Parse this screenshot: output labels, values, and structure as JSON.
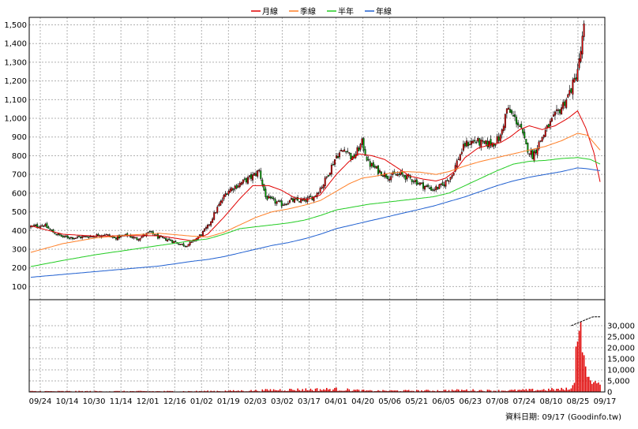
{
  "chart_data": {
    "type": "candlestick",
    "legend": [
      {
        "name": "月線",
        "color": "#e00000"
      },
      {
        "name": "季線",
        "color": "#ff7f27"
      },
      {
        "name": "半年",
        "color": "#22cc22"
      },
      {
        "name": "年線",
        "color": "#1f5fd0"
      }
    ],
    "legend_placement": "top-center",
    "grid": true,
    "price_axis": {
      "ticks": [
        100,
        200,
        300,
        400,
        500,
        600,
        700,
        800,
        900,
        1000,
        1100,
        1200,
        1300,
        1400,
        1500
      ],
      "tick_labels": [
        "100",
        "200",
        "300",
        "400",
        "500",
        "600",
        "700",
        "800",
        "900",
        "1,000",
        "1,100",
        "1,200",
        "1,300",
        "1,400",
        "1,500"
      ],
      "ylim": [
        30,
        1540
      ]
    },
    "volume_axis": {
      "ticks": [
        0,
        5000,
        10000,
        15000,
        20000,
        25000,
        30000
      ],
      "tick_labels": [
        "0",
        "5,000",
        "10,000",
        "15,000",
        "20,000",
        "25,000",
        "30,000"
      ],
      "ylim": [
        0,
        37500
      ]
    },
    "x_tick_labels": [
      "09/24",
      "10/14",
      "10/30",
      "11/14",
      "12/01",
      "12/16",
      "01/02",
      "01/19",
      "02/03",
      "03/02",
      "03/17",
      "04/01",
      "04/20",
      "05/06",
      "05/21",
      "06/05",
      "06/23",
      "07/08",
      "07/24",
      "08/10",
      "08/25",
      "09/17"
    ],
    "price_anchors": [
      [
        0,
        420
      ],
      [
        8,
        430
      ],
      [
        14,
        390
      ],
      [
        20,
        365
      ],
      [
        28,
        362
      ],
      [
        38,
        370
      ],
      [
        46,
        380
      ],
      [
        52,
        360
      ],
      [
        60,
        375
      ],
      [
        66,
        355
      ],
      [
        74,
        390
      ],
      [
        80,
        360
      ],
      [
        86,
        350
      ],
      [
        92,
        330
      ],
      [
        96,
        320
      ],
      [
        100,
        335
      ],
      [
        106,
        380
      ],
      [
        110,
        420
      ],
      [
        116,
        520
      ],
      [
        122,
        610
      ],
      [
        130,
        650
      ],
      [
        138,
        690
      ],
      [
        142,
        720
      ],
      [
        146,
        580
      ],
      [
        150,
        560
      ],
      [
        156,
        540
      ],
      [
        162,
        560
      ],
      [
        170,
        560
      ],
      [
        176,
        580
      ],
      [
        182,
        650
      ],
      [
        190,
        800
      ],
      [
        196,
        840
      ],
      [
        200,
        780
      ],
      [
        206,
        870
      ],
      [
        210,
        760
      ],
      [
        216,
        720
      ],
      [
        222,
        690
      ],
      [
        230,
        700
      ],
      [
        238,
        670
      ],
      [
        244,
        640
      ],
      [
        250,
        620
      ],
      [
        256,
        640
      ],
      [
        262,
        700
      ],
      [
        266,
        790
      ],
      [
        270,
        860
      ],
      [
        276,
        880
      ],
      [
        282,
        860
      ],
      [
        288,
        870
      ],
      [
        292,
        900
      ],
      [
        296,
        1050
      ],
      [
        300,
        1010
      ],
      [
        304,
        960
      ],
      [
        308,
        850
      ],
      [
        312,
        800
      ],
      [
        318,
        900
      ],
      [
        322,
        960
      ],
      [
        326,
        1010
      ],
      [
        330,
        1060
      ],
      [
        334,
        1120
      ],
      [
        338,
        1200
      ],
      [
        341,
        1300
      ],
      [
        343,
        1420
      ],
      [
        344,
        1480
      ]
    ],
    "ma_month": [
      [
        0,
        425
      ],
      [
        20,
        380
      ],
      [
        40,
        370
      ],
      [
        60,
        372
      ],
      [
        80,
        372
      ],
      [
        100,
        345
      ],
      [
        110,
        380
      ],
      [
        120,
        470
      ],
      [
        130,
        570
      ],
      [
        138,
        640
      ],
      [
        148,
        640
      ],
      [
        156,
        615
      ],
      [
        164,
        575
      ],
      [
        172,
        565
      ],
      [
        180,
        590
      ],
      [
        190,
        700
      ],
      [
        198,
        770
      ],
      [
        204,
        810
      ],
      [
        212,
        800
      ],
      [
        220,
        780
      ],
      [
        228,
        735
      ],
      [
        236,
        690
      ],
      [
        244,
        675
      ],
      [
        252,
        665
      ],
      [
        258,
        680
      ],
      [
        264,
        720
      ],
      [
        270,
        790
      ],
      [
        278,
        840
      ],
      [
        286,
        860
      ],
      [
        292,
        870
      ],
      [
        298,
        900
      ],
      [
        304,
        940
      ],
      [
        310,
        960
      ],
      [
        318,
        940
      ],
      [
        326,
        960
      ],
      [
        334,
        1000
      ],
      [
        340,
        1040
      ],
      [
        345,
        950
      ],
      [
        350,
        820
      ],
      [
        354,
        660
      ]
    ],
    "ma_quarter": [
      [
        0,
        283
      ],
      [
        20,
        330
      ],
      [
        40,
        360
      ],
      [
        60,
        375
      ],
      [
        80,
        385
      ],
      [
        100,
        370
      ],
      [
        110,
        365
      ],
      [
        120,
        390
      ],
      [
        130,
        430
      ],
      [
        140,
        470
      ],
      [
        150,
        500
      ],
      [
        160,
        515
      ],
      [
        170,
        535
      ],
      [
        180,
        560
      ],
      [
        190,
        610
      ],
      [
        198,
        650
      ],
      [
        206,
        680
      ],
      [
        214,
        690
      ],
      [
        222,
        705
      ],
      [
        232,
        715
      ],
      [
        242,
        712
      ],
      [
        252,
        700
      ],
      [
        260,
        715
      ],
      [
        270,
        745
      ],
      [
        280,
        770
      ],
      [
        290,
        790
      ],
      [
        300,
        810
      ],
      [
        310,
        830
      ],
      [
        320,
        850
      ],
      [
        330,
        880
      ],
      [
        340,
        920
      ],
      [
        346,
        910
      ],
      [
        354,
        830
      ]
    ],
    "ma_half": [
      [
        0,
        207
      ],
      [
        20,
        240
      ],
      [
        40,
        270
      ],
      [
        60,
        295
      ],
      [
        80,
        320
      ],
      [
        100,
        345
      ],
      [
        110,
        355
      ],
      [
        120,
        380
      ],
      [
        130,
        410
      ],
      [
        140,
        420
      ],
      [
        150,
        430
      ],
      [
        160,
        440
      ],
      [
        170,
        455
      ],
      [
        180,
        480
      ],
      [
        190,
        510
      ],
      [
        200,
        525
      ],
      [
        210,
        540
      ],
      [
        220,
        550
      ],
      [
        230,
        560
      ],
      [
        240,
        570
      ],
      [
        250,
        580
      ],
      [
        260,
        600
      ],
      [
        270,
        640
      ],
      [
        280,
        680
      ],
      [
        290,
        720
      ],
      [
        300,
        755
      ],
      [
        310,
        770
      ],
      [
        320,
        775
      ],
      [
        330,
        785
      ],
      [
        340,
        790
      ],
      [
        348,
        780
      ],
      [
        354,
        755
      ]
    ],
    "ma_year": [
      [
        0,
        150
      ],
      [
        20,
        165
      ],
      [
        40,
        180
      ],
      [
        60,
        195
      ],
      [
        80,
        210
      ],
      [
        100,
        235
      ],
      [
        110,
        245
      ],
      [
        120,
        260
      ],
      [
        130,
        280
      ],
      [
        140,
        300
      ],
      [
        150,
        320
      ],
      [
        160,
        335
      ],
      [
        170,
        355
      ],
      [
        180,
        380
      ],
      [
        190,
        410
      ],
      [
        200,
        430
      ],
      [
        210,
        450
      ],
      [
        220,
        470
      ],
      [
        230,
        490
      ],
      [
        240,
        510
      ],
      [
        250,
        530
      ],
      [
        260,
        555
      ],
      [
        270,
        580
      ],
      [
        280,
        610
      ],
      [
        290,
        640
      ],
      [
        300,
        665
      ],
      [
        310,
        685
      ],
      [
        320,
        700
      ],
      [
        330,
        715
      ],
      [
        340,
        735
      ],
      [
        346,
        730
      ],
      [
        354,
        720
      ]
    ],
    "volume_anchors": [
      [
        0,
        300
      ],
      [
        100,
        300
      ],
      [
        140,
        600
      ],
      [
        150,
        900
      ],
      [
        190,
        1200
      ],
      [
        210,
        500
      ],
      [
        250,
        600
      ],
      [
        270,
        800
      ],
      [
        290,
        600
      ],
      [
        300,
        700
      ],
      [
        320,
        1000
      ],
      [
        334,
        1200
      ],
      [
        336,
        1500
      ],
      [
        338,
        4000
      ],
      [
        339,
        24000
      ],
      [
        340,
        27000
      ],
      [
        341,
        30000
      ],
      [
        342,
        29000
      ],
      [
        343,
        22000
      ],
      [
        344,
        17000
      ],
      [
        345,
        10000
      ],
      [
        346,
        8000
      ],
      [
        347,
        6000
      ],
      [
        348,
        5000
      ],
      [
        349,
        4500
      ],
      [
        350,
        4000
      ],
      [
        351,
        4200
      ],
      [
        352,
        3800
      ],
      [
        353,
        4000
      ],
      [
        354,
        3500
      ]
    ]
  },
  "footer": {
    "date_label": "資料日期: 09/17",
    "source": "(Goodinfo.tw)"
  }
}
